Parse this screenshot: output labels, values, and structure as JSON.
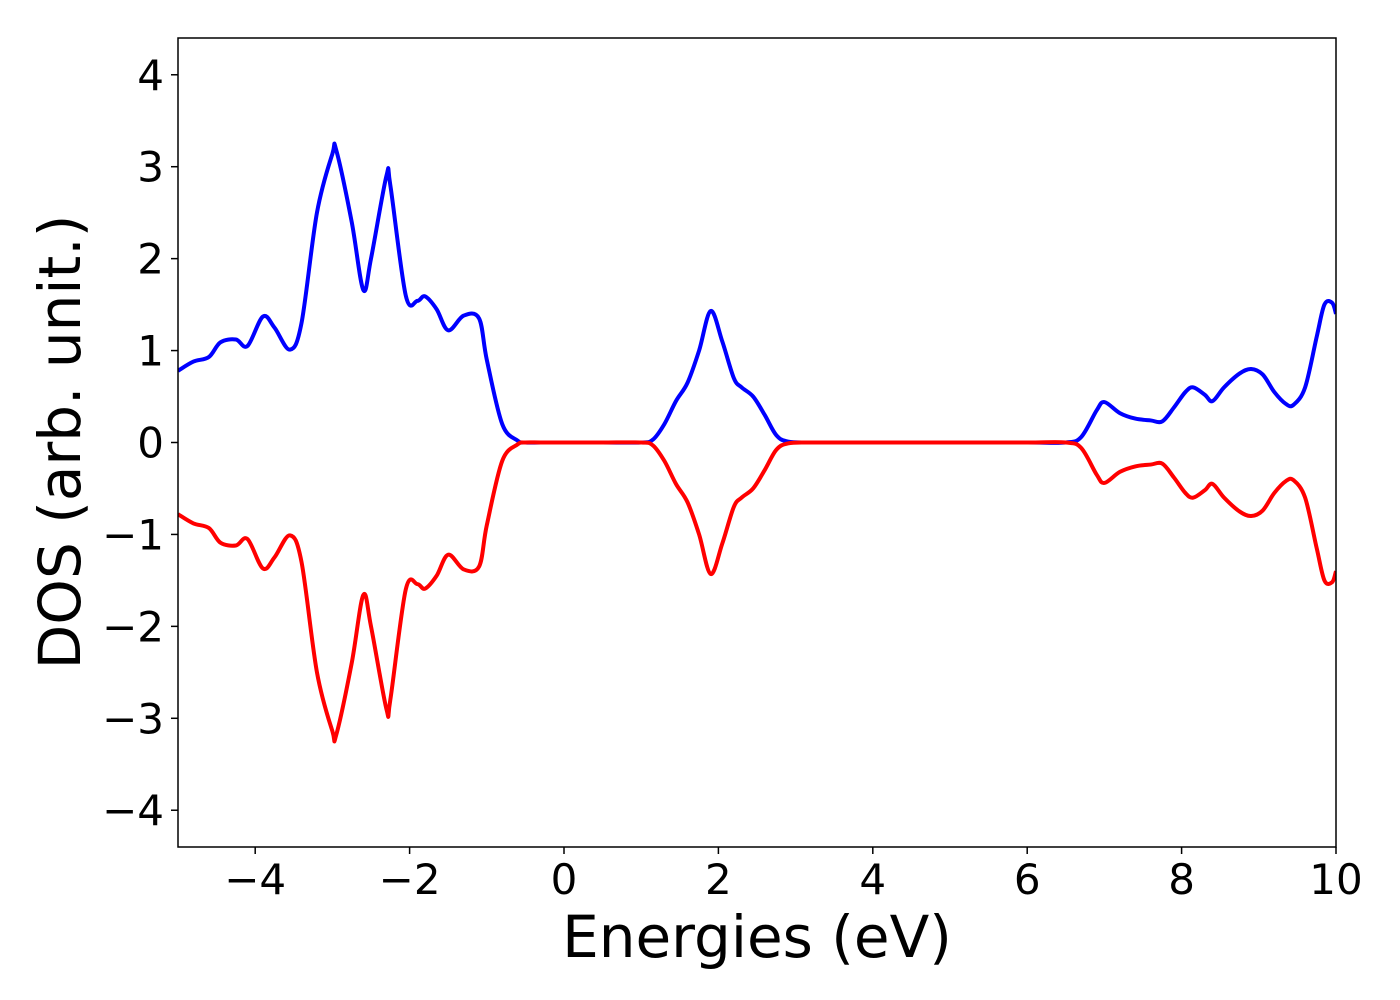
{
  "chart_data": {
    "type": "line",
    "title": "",
    "xlabel": "Energies (eV)",
    "ylabel": "DOS (arb. unit.)",
    "xlim": [
      -5,
      10
    ],
    "ylim": [
      -4.4,
      4.4
    ],
    "grid": false,
    "legend": "none",
    "x_ticks": [
      {
        "value": -4,
        "label": "−4"
      },
      {
        "value": -2,
        "label": "−2"
      },
      {
        "value": 0,
        "label": "0"
      },
      {
        "value": 2,
        "label": "2"
      },
      {
        "value": 4,
        "label": "4"
      },
      {
        "value": 6,
        "label": "6"
      },
      {
        "value": 8,
        "label": "8"
      },
      {
        "value": 10,
        "label": "10"
      }
    ],
    "y_ticks": [
      {
        "value": 4,
        "label": "4"
      },
      {
        "value": 3,
        "label": "3"
      },
      {
        "value": 2,
        "label": "2"
      },
      {
        "value": 1,
        "label": "1"
      },
      {
        "value": 0,
        "label": "0"
      },
      {
        "value": -1,
        "label": "−1"
      },
      {
        "value": -2,
        "label": "−2"
      },
      {
        "value": -3,
        "label": "−3"
      },
      {
        "value": -4,
        "label": "−4"
      }
    ],
    "x": [
      -5.0,
      -4.8,
      -4.6,
      -4.45,
      -4.25,
      -4.1,
      -3.9,
      -3.75,
      -3.55,
      -3.4,
      -3.2,
      -3.0,
      -2.95,
      -2.75,
      -2.6,
      -2.5,
      -2.3,
      -2.25,
      -2.05,
      -1.9,
      -1.8,
      -1.65,
      -1.5,
      -1.3,
      -1.1,
      -1.0,
      -0.8,
      -0.6,
      -0.5,
      -0.3,
      0.0,
      0.5,
      1.0,
      1.15,
      1.3,
      1.45,
      1.6,
      1.75,
      1.9,
      2.05,
      2.2,
      2.3,
      2.45,
      2.6,
      2.75,
      2.9,
      3.2,
      4.0,
      5.0,
      6.0,
      6.5,
      6.7,
      6.9,
      7.0,
      7.2,
      7.4,
      7.6,
      7.75,
      7.9,
      8.05,
      8.15,
      8.3,
      8.4,
      8.55,
      8.75,
      8.9,
      9.05,
      9.2,
      9.35,
      9.45,
      9.6,
      9.75,
      9.85,
      9.95,
      10.0
    ],
    "series": [
      {
        "color": "#0000ff",
        "values": [
          0.78,
          0.88,
          0.93,
          1.09,
          1.12,
          1.05,
          1.37,
          1.25,
          1.01,
          1.3,
          2.5,
          3.14,
          3.18,
          2.4,
          1.66,
          2.0,
          2.9,
          2.8,
          1.6,
          1.54,
          1.59,
          1.45,
          1.22,
          1.38,
          1.35,
          0.9,
          0.2,
          0.02,
          0.0,
          0.0,
          0.0,
          0.0,
          0.0,
          0.03,
          0.2,
          0.45,
          0.65,
          1.0,
          1.43,
          1.1,
          0.7,
          0.6,
          0.5,
          0.3,
          0.08,
          0.01,
          0.0,
          0.0,
          0.0,
          0.0,
          0.0,
          0.06,
          0.35,
          0.44,
          0.32,
          0.26,
          0.24,
          0.23,
          0.38,
          0.55,
          0.6,
          0.52,
          0.45,
          0.6,
          0.75,
          0.8,
          0.74,
          0.55,
          0.42,
          0.41,
          0.6,
          1.15,
          1.5,
          1.52,
          1.4
        ]
      },
      {
        "color": "#ff0000",
        "values": [
          -0.78,
          -0.88,
          -0.93,
          -1.09,
          -1.12,
          -1.05,
          -1.37,
          -1.25,
          -1.01,
          -1.3,
          -2.5,
          -3.14,
          -3.18,
          -2.4,
          -1.66,
          -2.0,
          -2.9,
          -2.8,
          -1.6,
          -1.54,
          -1.59,
          -1.45,
          -1.22,
          -1.38,
          -1.35,
          -0.9,
          -0.2,
          -0.02,
          0.0,
          0.0,
          0.0,
          0.0,
          0.0,
          -0.03,
          -0.2,
          -0.45,
          -0.65,
          -1.0,
          -1.43,
          -1.1,
          -0.7,
          -0.6,
          -0.5,
          -0.3,
          -0.08,
          -0.01,
          0.0,
          0.0,
          0.0,
          0.0,
          0.0,
          -0.06,
          -0.35,
          -0.44,
          -0.32,
          -0.26,
          -0.24,
          -0.23,
          -0.38,
          -0.55,
          -0.6,
          -0.52,
          -0.45,
          -0.6,
          -0.75,
          -0.8,
          -0.74,
          -0.55,
          -0.42,
          -0.41,
          -0.6,
          -1.15,
          -1.5,
          -1.52,
          -1.4
        ]
      }
    ]
  }
}
